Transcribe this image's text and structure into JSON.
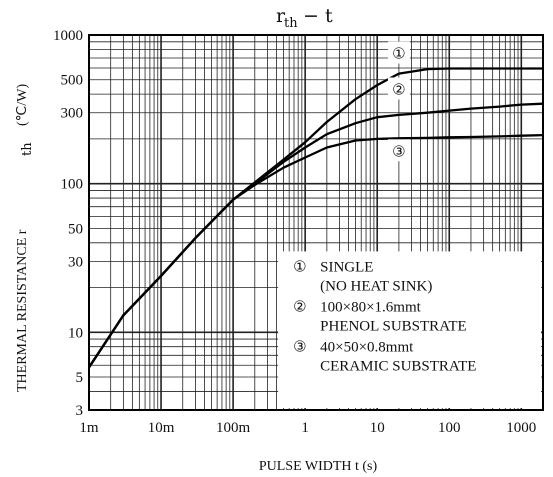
{
  "chart_data": {
    "type": "line",
    "title_main": "r",
    "title_sub": "th",
    "title_rest": " − t",
    "xlabel": "PULSE WIDTH   t   (s)",
    "ylabel": "THERMAL RESISTANCE    r",
    "ylabel_sub": "th",
    "ylabel_unit": "(℃/W)",
    "xscale": "log",
    "yscale": "log",
    "xlim": [
      0.001,
      2000
    ],
    "ylim": [
      3,
      1000
    ],
    "grid": true,
    "x_ticks": [
      {
        "value": 0.001,
        "label": "1m"
      },
      {
        "value": 0.01,
        "label": "10m"
      },
      {
        "value": 0.1,
        "label": "100m"
      },
      {
        "value": 1,
        "label": "1"
      },
      {
        "value": 10,
        "label": "10"
      },
      {
        "value": 100,
        "label": "100"
      },
      {
        "value": 1000,
        "label": "1000"
      }
    ],
    "y_ticks": [
      {
        "value": 3,
        "label": "3"
      },
      {
        "value": 5,
        "label": "5"
      },
      {
        "value": 10,
        "label": "10"
      },
      {
        "value": 30,
        "label": "30"
      },
      {
        "value": 50,
        "label": "50"
      },
      {
        "value": 100,
        "label": "100"
      },
      {
        "value": 300,
        "label": "300"
      },
      {
        "value": 500,
        "label": "500"
      },
      {
        "value": 1000,
        "label": "1000"
      }
    ],
    "series": [
      {
        "name": "①",
        "x": [
          0.001,
          0.003,
          0.01,
          0.03,
          0.1,
          0.2,
          0.5,
          1,
          2,
          5,
          10,
          20,
          50,
          100,
          200,
          500,
          1000,
          2000
        ],
        "y": [
          5.8,
          13,
          24,
          43,
          78,
          102,
          145,
          190,
          260,
          370,
          460,
          550,
          590,
          595,
          595,
          595,
          595,
          595
        ]
      },
      {
        "name": "②",
        "x": [
          0.001,
          0.003,
          0.01,
          0.03,
          0.1,
          0.2,
          0.5,
          1,
          2,
          5,
          10,
          20,
          50,
          100,
          200,
          500,
          1000,
          2000
        ],
        "y": [
          5.8,
          13,
          24,
          43,
          78,
          100,
          140,
          175,
          215,
          255,
          280,
          290,
          300,
          310,
          320,
          330,
          340,
          345
        ]
      },
      {
        "name": "③",
        "x": [
          0.001,
          0.003,
          0.01,
          0.03,
          0.1,
          0.2,
          0.5,
          1,
          2,
          5,
          10,
          20,
          50,
          100,
          200,
          500,
          1000,
          2000
        ],
        "y": [
          5.8,
          13,
          24,
          43,
          78,
          98,
          128,
          150,
          175,
          195,
          200,
          202,
          203,
          205,
          206,
          208,
          210,
          212
        ]
      }
    ],
    "curve_markers": [
      {
        "label": "①",
        "x": 20,
        "y": 750
      },
      {
        "label": "②",
        "x": 20,
        "y": 430
      },
      {
        "label": "③",
        "x": 20,
        "y": 165
      }
    ],
    "legend": {
      "placement": "bottom-right",
      "entries": [
        {
          "marker": "①",
          "lines": [
            "SINGLE",
            "(NO HEAT SINK)"
          ]
        },
        {
          "marker": "②",
          "lines": [
            "100×80×1.6mmt",
            "PHENOL SUBSTRATE"
          ]
        },
        {
          "marker": "③",
          "lines": [
            "40×50×0.8mmt",
            "CERAMIC SUBSTRATE"
          ]
        }
      ]
    }
  }
}
